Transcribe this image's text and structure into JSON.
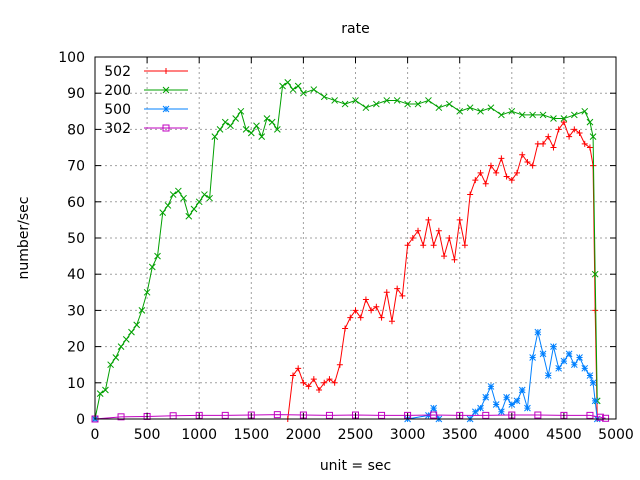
{
  "chart_data": {
    "type": "line",
    "title": "rate",
    "xlabel": "unit = sec",
    "ylabel": "number/sec",
    "xlim": [
      0,
      5000
    ],
    "ylim": [
      0,
      100
    ],
    "xticks": [
      "0",
      "500",
      "1000",
      "1500",
      "2000",
      "2500",
      "3000",
      "3500",
      "4000",
      "4500",
      "5000"
    ],
    "yticks": [
      "0",
      "10",
      "20",
      "30",
      "40",
      "50",
      "60",
      "70",
      "80",
      "90",
      "100"
    ],
    "grid": true,
    "legend_position": "top-left",
    "series": [
      {
        "name": "502",
        "color": "#ff0000",
        "marker": "plus",
        "x": [
          0,
          1850,
          1900,
          1950,
          2000,
          2050,
          2100,
          2150,
          2200,
          2250,
          2300,
          2350,
          2400,
          2450,
          2500,
          2550,
          2600,
          2650,
          2700,
          2750,
          2800,
          2850,
          2900,
          2950,
          3000,
          3050,
          3100,
          3150,
          3200,
          3250,
          3300,
          3350,
          3400,
          3450,
          3500,
          3550,
          3600,
          3650,
          3700,
          3750,
          3800,
          3850,
          3900,
          3950,
          4000,
          4050,
          4100,
          4150,
          4200,
          4250,
          4300,
          4350,
          4400,
          4450,
          4500,
          4550,
          4600,
          4650,
          4700,
          4750,
          4780,
          4800,
          4820
        ],
        "y": [
          0,
          0,
          12,
          14,
          10,
          9,
          11,
          8,
          10,
          11,
          10,
          15,
          25,
          28,
          30,
          28,
          33,
          30,
          31,
          28,
          35,
          27,
          36,
          34,
          48,
          50,
          52,
          48,
          55,
          48,
          52,
          45,
          50,
          44,
          55,
          48,
          62,
          66,
          68,
          65,
          70,
          68,
          72,
          67,
          66,
          68,
          73,
          71,
          70,
          76,
          76,
          78,
          75,
          80,
          82,
          78,
          80,
          79,
          76,
          75,
          70,
          30,
          0
        ]
      },
      {
        "name": "200",
        "color": "#00a000",
        "marker": "x",
        "x": [
          0,
          50,
          100,
          150,
          200,
          250,
          300,
          350,
          400,
          450,
          500,
          550,
          600,
          650,
          700,
          750,
          800,
          850,
          900,
          950,
          1000,
          1050,
          1100,
          1150,
          1200,
          1250,
          1300,
          1350,
          1400,
          1450,
          1500,
          1550,
          1600,
          1650,
          1700,
          1750,
          1800,
          1850,
          1900,
          1950,
          2000,
          2100,
          2200,
          2300,
          2400,
          2500,
          2600,
          2700,
          2800,
          2900,
          3000,
          3100,
          3200,
          3300,
          3400,
          3500,
          3600,
          3700,
          3800,
          3900,
          4000,
          4100,
          4200,
          4300,
          4400,
          4500,
          4600,
          4700,
          4750,
          4780,
          4800,
          4820
        ],
        "y": [
          0,
          7,
          8,
          15,
          17,
          20,
          22,
          24,
          26,
          30,
          35,
          42,
          45,
          57,
          59,
          62,
          63,
          61,
          56,
          58,
          60,
          62,
          61,
          78,
          80,
          82,
          81,
          83,
          85,
          80,
          79,
          81,
          78,
          83,
          82,
          80,
          92,
          93,
          91,
          92,
          90,
          91,
          89,
          88,
          87,
          88,
          86,
          87,
          88,
          88,
          87,
          87,
          88,
          86,
          87,
          85,
          86,
          85,
          86,
          84,
          85,
          84,
          84,
          84,
          83,
          83,
          84,
          85,
          82,
          78,
          40,
          5
        ]
      },
      {
        "name": "500",
        "color": "#0080ff",
        "marker": "star",
        "x": [
          0,
          3000,
          3200,
          3250,
          3300,
          3600,
          3650,
          3700,
          3750,
          3800,
          3850,
          3900,
          3950,
          4000,
          4050,
          4100,
          4150,
          4200,
          4250,
          4300,
          4350,
          4400,
          4450,
          4500,
          4550,
          4600,
          4650,
          4700,
          4750,
          4780,
          4800,
          4820
        ],
        "y": [
          0,
          0,
          1,
          3,
          0,
          0,
          2,
          3,
          6,
          9,
          4,
          2,
          6,
          4,
          5,
          8,
          3,
          17,
          24,
          18,
          12,
          20,
          14,
          16,
          18,
          15,
          17,
          14,
          12,
          10,
          5,
          0
        ]
      },
      {
        "name": "302",
        "color": "#c000c0",
        "marker": "square",
        "x": [
          0,
          250,
          500,
          750,
          1000,
          1250,
          1500,
          1750,
          2000,
          2250,
          2500,
          2750,
          3000,
          3250,
          3500,
          3750,
          4000,
          4250,
          4500,
          4750,
          4850,
          4900
        ],
        "y": [
          0,
          0.6,
          0.7,
          0.9,
          1.0,
          1.0,
          1.1,
          1.2,
          1.1,
          1.0,
          1.1,
          1.0,
          1.0,
          1.1,
          1.0,
          1.0,
          1.1,
          1.1,
          1.0,
          1.0,
          0.5,
          0.2
        ]
      }
    ]
  }
}
